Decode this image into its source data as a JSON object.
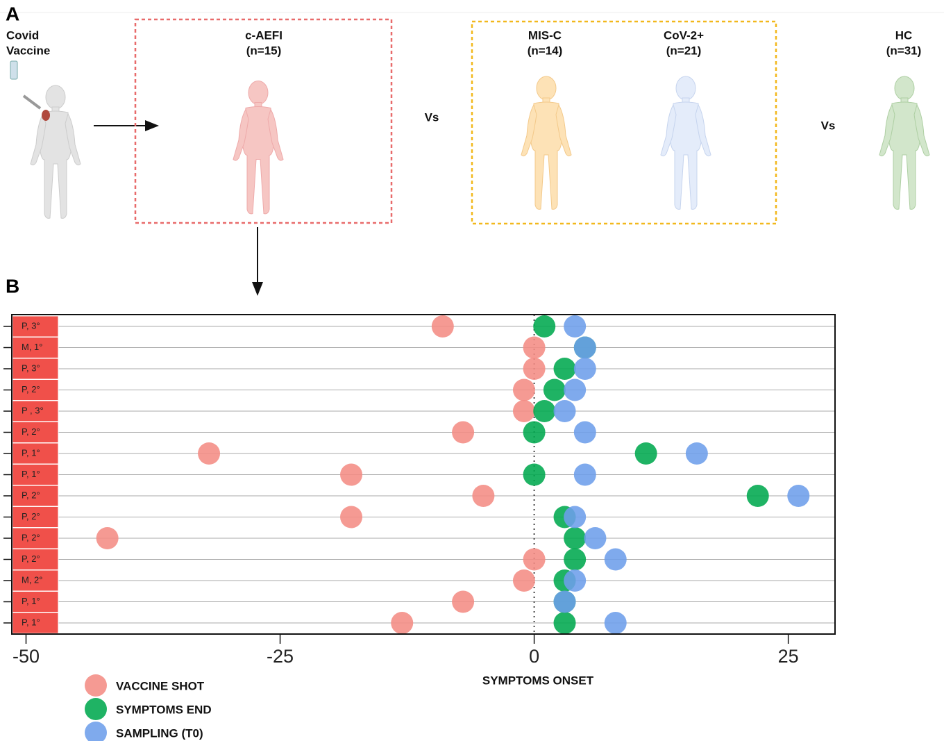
{
  "panel_a": {
    "label": "A",
    "vaccine_label": [
      "Covid",
      "Vaccine"
    ],
    "groups": [
      {
        "name": "c-AEFI",
        "n": "(n=15)"
      },
      {
        "name": "MIS-C",
        "n": "(n=14)"
      },
      {
        "name": "CoV-2+",
        "n": "(n=21)"
      },
      {
        "name": "HC",
        "n": "(n=31)"
      }
    ],
    "vs": [
      "Vs",
      "Vs"
    ]
  },
  "panel_b_label": "B",
  "chart_data": {
    "type": "dot",
    "categories": [
      "P, 3°",
      "M, 1°",
      "P, 3°",
      "P, 2°",
      "P , 3°",
      "P, 2°",
      "P, 1°",
      "P, 1°",
      "P, 2°",
      "P, 2°",
      "P, 2°",
      "P, 2°",
      "M, 2°",
      "P, 1°",
      "P, 1°"
    ],
    "series": [
      {
        "name": "VACCINE SHOT",
        "color": "#f48c84",
        "values": [
          -9,
          0,
          0,
          -1,
          -1,
          -7,
          -32,
          -18,
          -5,
          -18,
          -42,
          0,
          -1,
          -7,
          -13
        ]
      },
      {
        "name": "SYMPTOMS END",
        "color": "#00a84f",
        "values": [
          1,
          5,
          3,
          2,
          1,
          0,
          11,
          0,
          22,
          3,
          4,
          4,
          3,
          3,
          3
        ]
      },
      {
        "name": "SAMPLING (T0)",
        "color": "#6d9eeb",
        "values": [
          4,
          5,
          5,
          4,
          3,
          5,
          16,
          5,
          26,
          4,
          6,
          8,
          4,
          3,
          8
        ]
      }
    ],
    "xlim": [
      -51.4,
      29.6
    ],
    "xticks": [
      -50,
      -25,
      0,
      25
    ],
    "x_label": "SYMPTOMS ONSET",
    "reference_line_x": 0,
    "grid": true,
    "legend": "bottom-left"
  }
}
